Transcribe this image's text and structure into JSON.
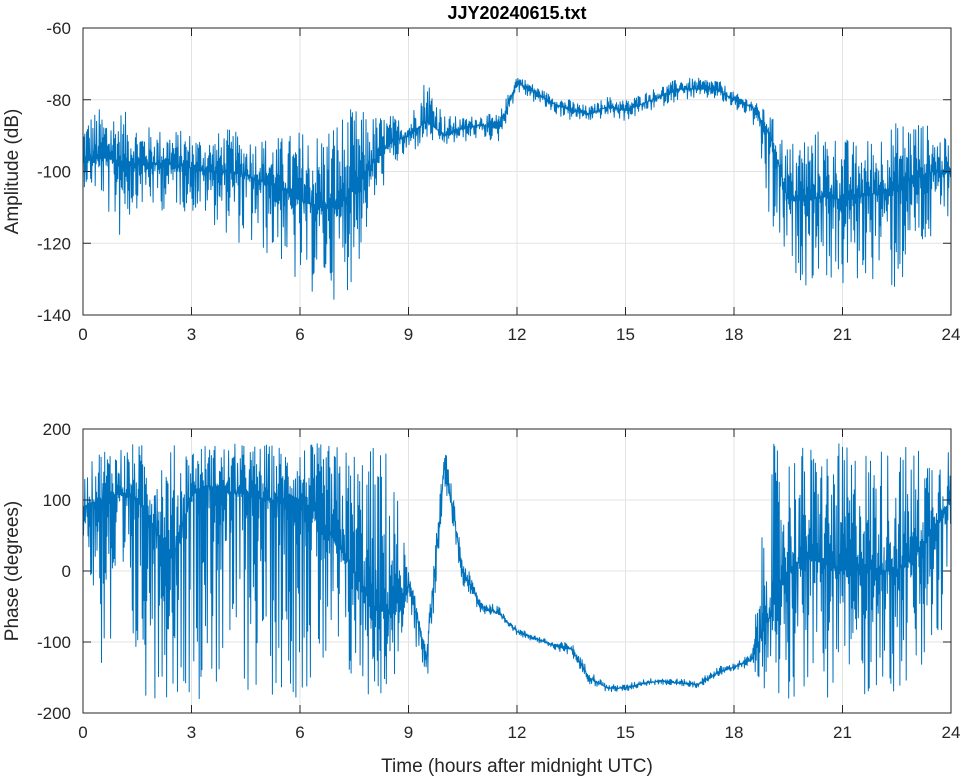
{
  "chart_data": [
    {
      "type": "line",
      "title": "JJY20240615.txt",
      "xlabel": "",
      "ylabel": "Amplitude (dB)",
      "xlim": [
        0,
        24
      ],
      "ylim": [
        -140,
        -60
      ],
      "xticks": [
        0,
        3,
        6,
        9,
        12,
        15,
        18,
        21,
        24
      ],
      "yticks": [
        -140,
        -120,
        -100,
        -80,
        -60
      ],
      "grid": true,
      "color": "#0072bd",
      "x_step_hours": 0.5,
      "series": [
        {
          "name": "mean",
          "values": [
            -97,
            -96,
            -97,
            -98,
            -98,
            -98,
            -99,
            -100,
            -100,
            -101,
            -103,
            -105,
            -108,
            -110,
            -110,
            -105,
            -98,
            -92,
            -90,
            -86,
            -90,
            -88,
            -87,
            -88,
            -75,
            -78,
            -81,
            -83,
            -84,
            -82,
            -83,
            -81,
            -79,
            -77,
            -77,
            -77,
            -80,
            -82,
            -90,
            -108,
            -108,
            -107,
            -108,
            -107,
            -106,
            -104,
            -102,
            -100,
            -100
          ]
        },
        {
          "name": "max",
          "values": [
            -84,
            -82,
            -82,
            -86,
            -88,
            -88,
            -89,
            -90,
            -88,
            -90,
            -90,
            -90,
            -88,
            -88,
            -84,
            -82,
            -84,
            -84,
            -86,
            -72,
            -84,
            -85,
            -84,
            -84,
            -73,
            -76,
            -79,
            -80,
            -82,
            -79,
            -80,
            -78,
            -76,
            -74,
            -74,
            -74,
            -78,
            -80,
            -84,
            -92,
            -88,
            -88,
            -90,
            -92,
            -88,
            -86,
            -84,
            -88,
            -92
          ]
        },
        {
          "name": "min",
          "values": [
            -104,
            -108,
            -120,
            -110,
            -112,
            -110,
            -112,
            -114,
            -118,
            -122,
            -124,
            -126,
            -136,
            -134,
            -136,
            -132,
            -112,
            -100,
            -96,
            -92,
            -93,
            -92,
            -91,
            -92,
            -78,
            -81,
            -84,
            -86,
            -86,
            -85,
            -86,
            -84,
            -82,
            -80,
            -80,
            -80,
            -83,
            -85,
            -122,
            -128,
            -132,
            -130,
            -135,
            -132,
            -130,
            -137,
            -125,
            -124,
            -110
          ]
        }
      ]
    },
    {
      "type": "line",
      "title": "",
      "xlabel": "Time (hours after midnight UTC)",
      "ylabel": "Phase (degrees)",
      "xlim": [
        0,
        24
      ],
      "ylim": [
        -200,
        200
      ],
      "xticks": [
        0,
        3,
        6,
        9,
        12,
        15,
        18,
        21,
        24
      ],
      "yticks": [
        -200,
        -100,
        0,
        100,
        200
      ],
      "grid": true,
      "color": "#0072bd",
      "x_step_hours": 0.5,
      "series": [
        {
          "name": "mean",
          "values": [
            90,
            100,
            110,
            100,
            60,
            20,
            110,
            120,
            110,
            110,
            100,
            100,
            100,
            80,
            40,
            0,
            -50,
            -60,
            -20,
            -120,
            150,
            0,
            -50,
            -60,
            -85,
            -95,
            -105,
            -110,
            -150,
            -165,
            -165,
            -158,
            -155,
            -158,
            -160,
            -145,
            -135,
            -125,
            -60,
            0,
            20,
            10,
            0,
            10,
            0,
            0,
            20,
            60,
            100
          ]
        },
        {
          "name": "max",
          "values": [
            130,
            180,
            180,
            180,
            180,
            180,
            180,
            180,
            180,
            180,
            180,
            180,
            180,
            180,
            180,
            180,
            180,
            180,
            0,
            -100,
            180,
            20,
            -40,
            -50,
            -80,
            -90,
            -100,
            -100,
            -140,
            -160,
            -160,
            -152,
            -150,
            -152,
            -155,
            -135,
            -130,
            -115,
            180,
            180,
            180,
            180,
            180,
            180,
            180,
            180,
            180,
            180,
            180
          ]
        },
        {
          "name": "min",
          "values": [
            50,
            -150,
            -180,
            -180,
            -180,
            -180,
            -180,
            -180,
            -180,
            -180,
            -180,
            -180,
            -180,
            -180,
            -180,
            -180,
            -180,
            -180,
            -60,
            -180,
            120,
            -20,
            -60,
            -70,
            -90,
            -100,
            -110,
            -120,
            -160,
            -170,
            -170,
            -162,
            -160,
            -162,
            -165,
            -150,
            -140,
            -135,
            -180,
            -180,
            -180,
            -180,
            -180,
            -180,
            -180,
            -180,
            -180,
            -180,
            -20
          ]
        }
      ]
    }
  ]
}
